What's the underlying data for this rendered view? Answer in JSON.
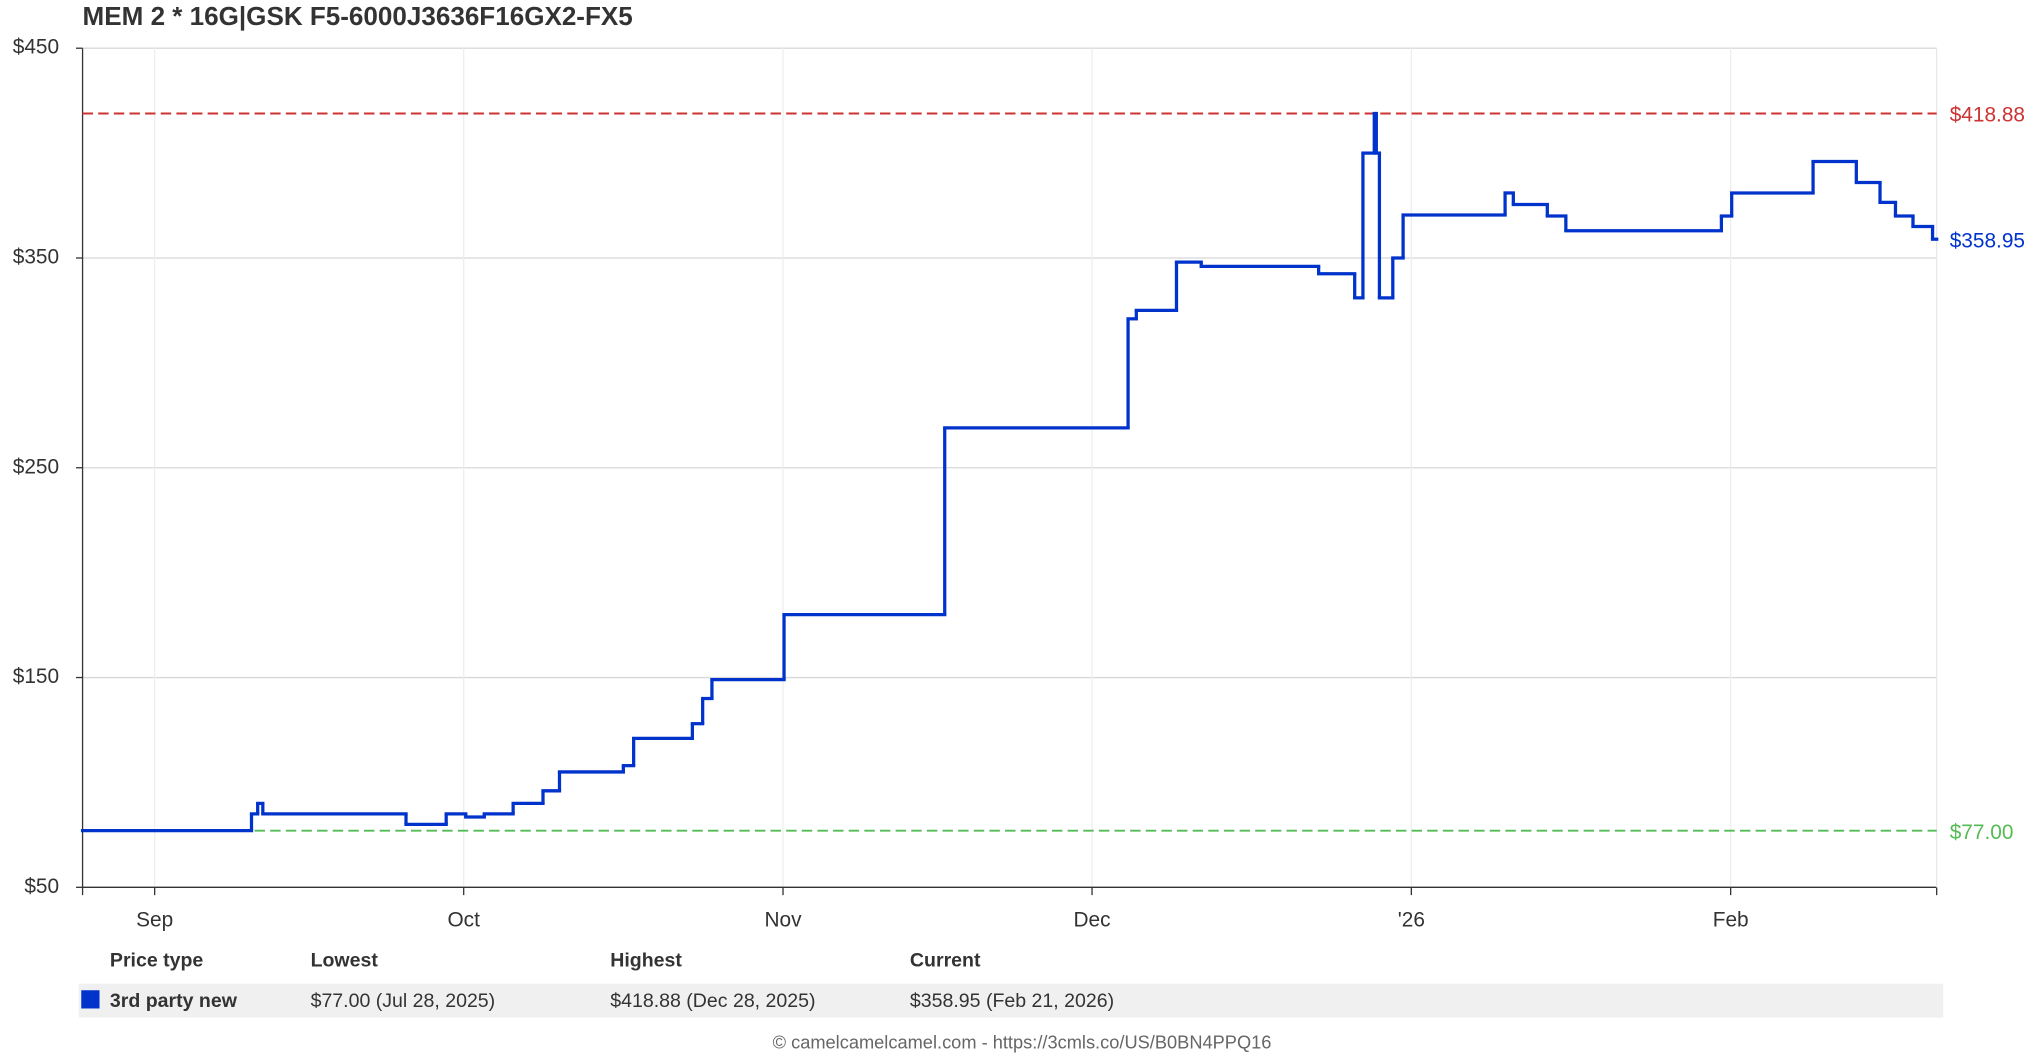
{
  "chart_data": {
    "type": "line",
    "title": "MEM 2 * 16G|GSK F5-6000J3636F16GX2-FX5",
    "x": [
      0,
      16.4,
      17,
      17.5,
      31.4,
      35.3,
      37.2,
      39,
      41.8,
      44.7,
      46.3,
      52.5,
      53.5,
      59.2,
      60.2,
      61.1,
      68.1,
      83.7,
      101.5,
      102.3,
      106.2,
      108.6,
      120,
      123.5,
      124.3,
      125.4,
      125.6,
      125.9,
      127.2,
      128.2,
      138.1,
      138.9,
      142.2,
      144,
      159.1,
      160.1,
      168,
      172.2,
      174.5,
      176,
      177.7,
      179.6
    ],
    "series": [
      {
        "name": "3rd party new",
        "color": "#0033cc",
        "values": [
          77,
          85,
          90,
          85,
          80,
          85,
          83.5,
          85,
          90,
          96,
          105,
          108,
          121,
          128,
          140,
          149,
          180,
          269,
          321,
          325,
          348,
          346,
          342.5,
          331,
          400,
          418.88,
          400,
          331,
          350,
          370.5,
          381,
          375.5,
          370,
          363,
          370,
          381,
          396,
          386,
          376.5,
          370,
          365,
          358.95
        ]
      }
    ],
    "xlim": [
      0,
      180
    ],
    "xticks": [
      {
        "value": 7,
        "label": "Sep"
      },
      {
        "value": 37,
        "label": "Oct"
      },
      {
        "value": 68,
        "label": "Nov"
      },
      {
        "value": 98,
        "label": "Dec"
      },
      {
        "value": 129,
        "label": "'26"
      },
      {
        "value": 160,
        "label": "Feb"
      }
    ],
    "ylim": [
      50,
      450
    ],
    "yticks": [
      {
        "value": 50,
        "label": "$50"
      },
      {
        "value": 150,
        "label": "$150"
      },
      {
        "value": 250,
        "label": "$250"
      },
      {
        "value": 350,
        "label": "$350"
      },
      {
        "value": 450,
        "label": "$450"
      }
    ],
    "grid": true,
    "reference_lines": [
      {
        "value": 418.88,
        "label": "$418.88",
        "color": "#cc3333"
      },
      {
        "value": 77,
        "label": "$77.00",
        "color": "#55bb55"
      }
    ],
    "current_label": {
      "value": 358.95,
      "label": "$358.95"
    }
  },
  "table": {
    "columns": [
      "Price type",
      "Lowest",
      "Highest",
      "Current"
    ],
    "rows": [
      [
        "3rd party new",
        "$77.00 (Jul 28, 2025)",
        "$418.88 (Dec 28, 2025)",
        "$358.95 (Feb 21, 2026)"
      ]
    ]
  },
  "footer": "© camelcamelcamel.com - https://3cmls.co/US/B0BN4PPQ16"
}
